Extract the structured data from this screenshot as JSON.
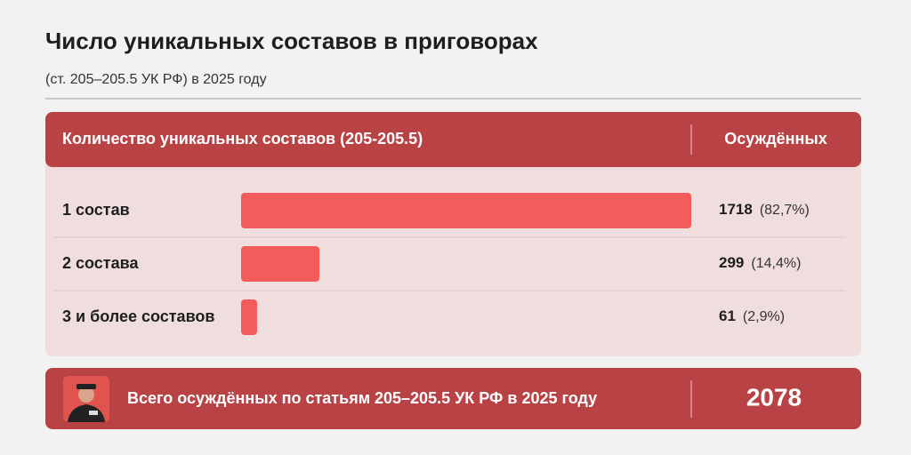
{
  "chart_data": {
    "type": "bar",
    "title": "Число уникальных составов в приговорах",
    "subtitle": "(ст. 205–205.5 УК РФ) в 2025 году",
    "category_header": "Количество уникальных составов (205-205.5)",
    "value_header": "Осуждённых",
    "categories": [
      "1 состав",
      "2 состава",
      "3 и более составов"
    ],
    "values": [
      1718,
      299,
      61
    ],
    "shares": [
      {
        "value": 82.7,
        "label": "(82,7%)"
      },
      {
        "value": 14.4,
        "label": "(14,4%)"
      },
      {
        "value": 2.9,
        "label": "(2,9%)"
      }
    ],
    "color": "#f45b5b",
    "total_label": "Всего осуждённых по статьям 205–205.5 УК РФ в 2025 году",
    "total": 2078
  }
}
